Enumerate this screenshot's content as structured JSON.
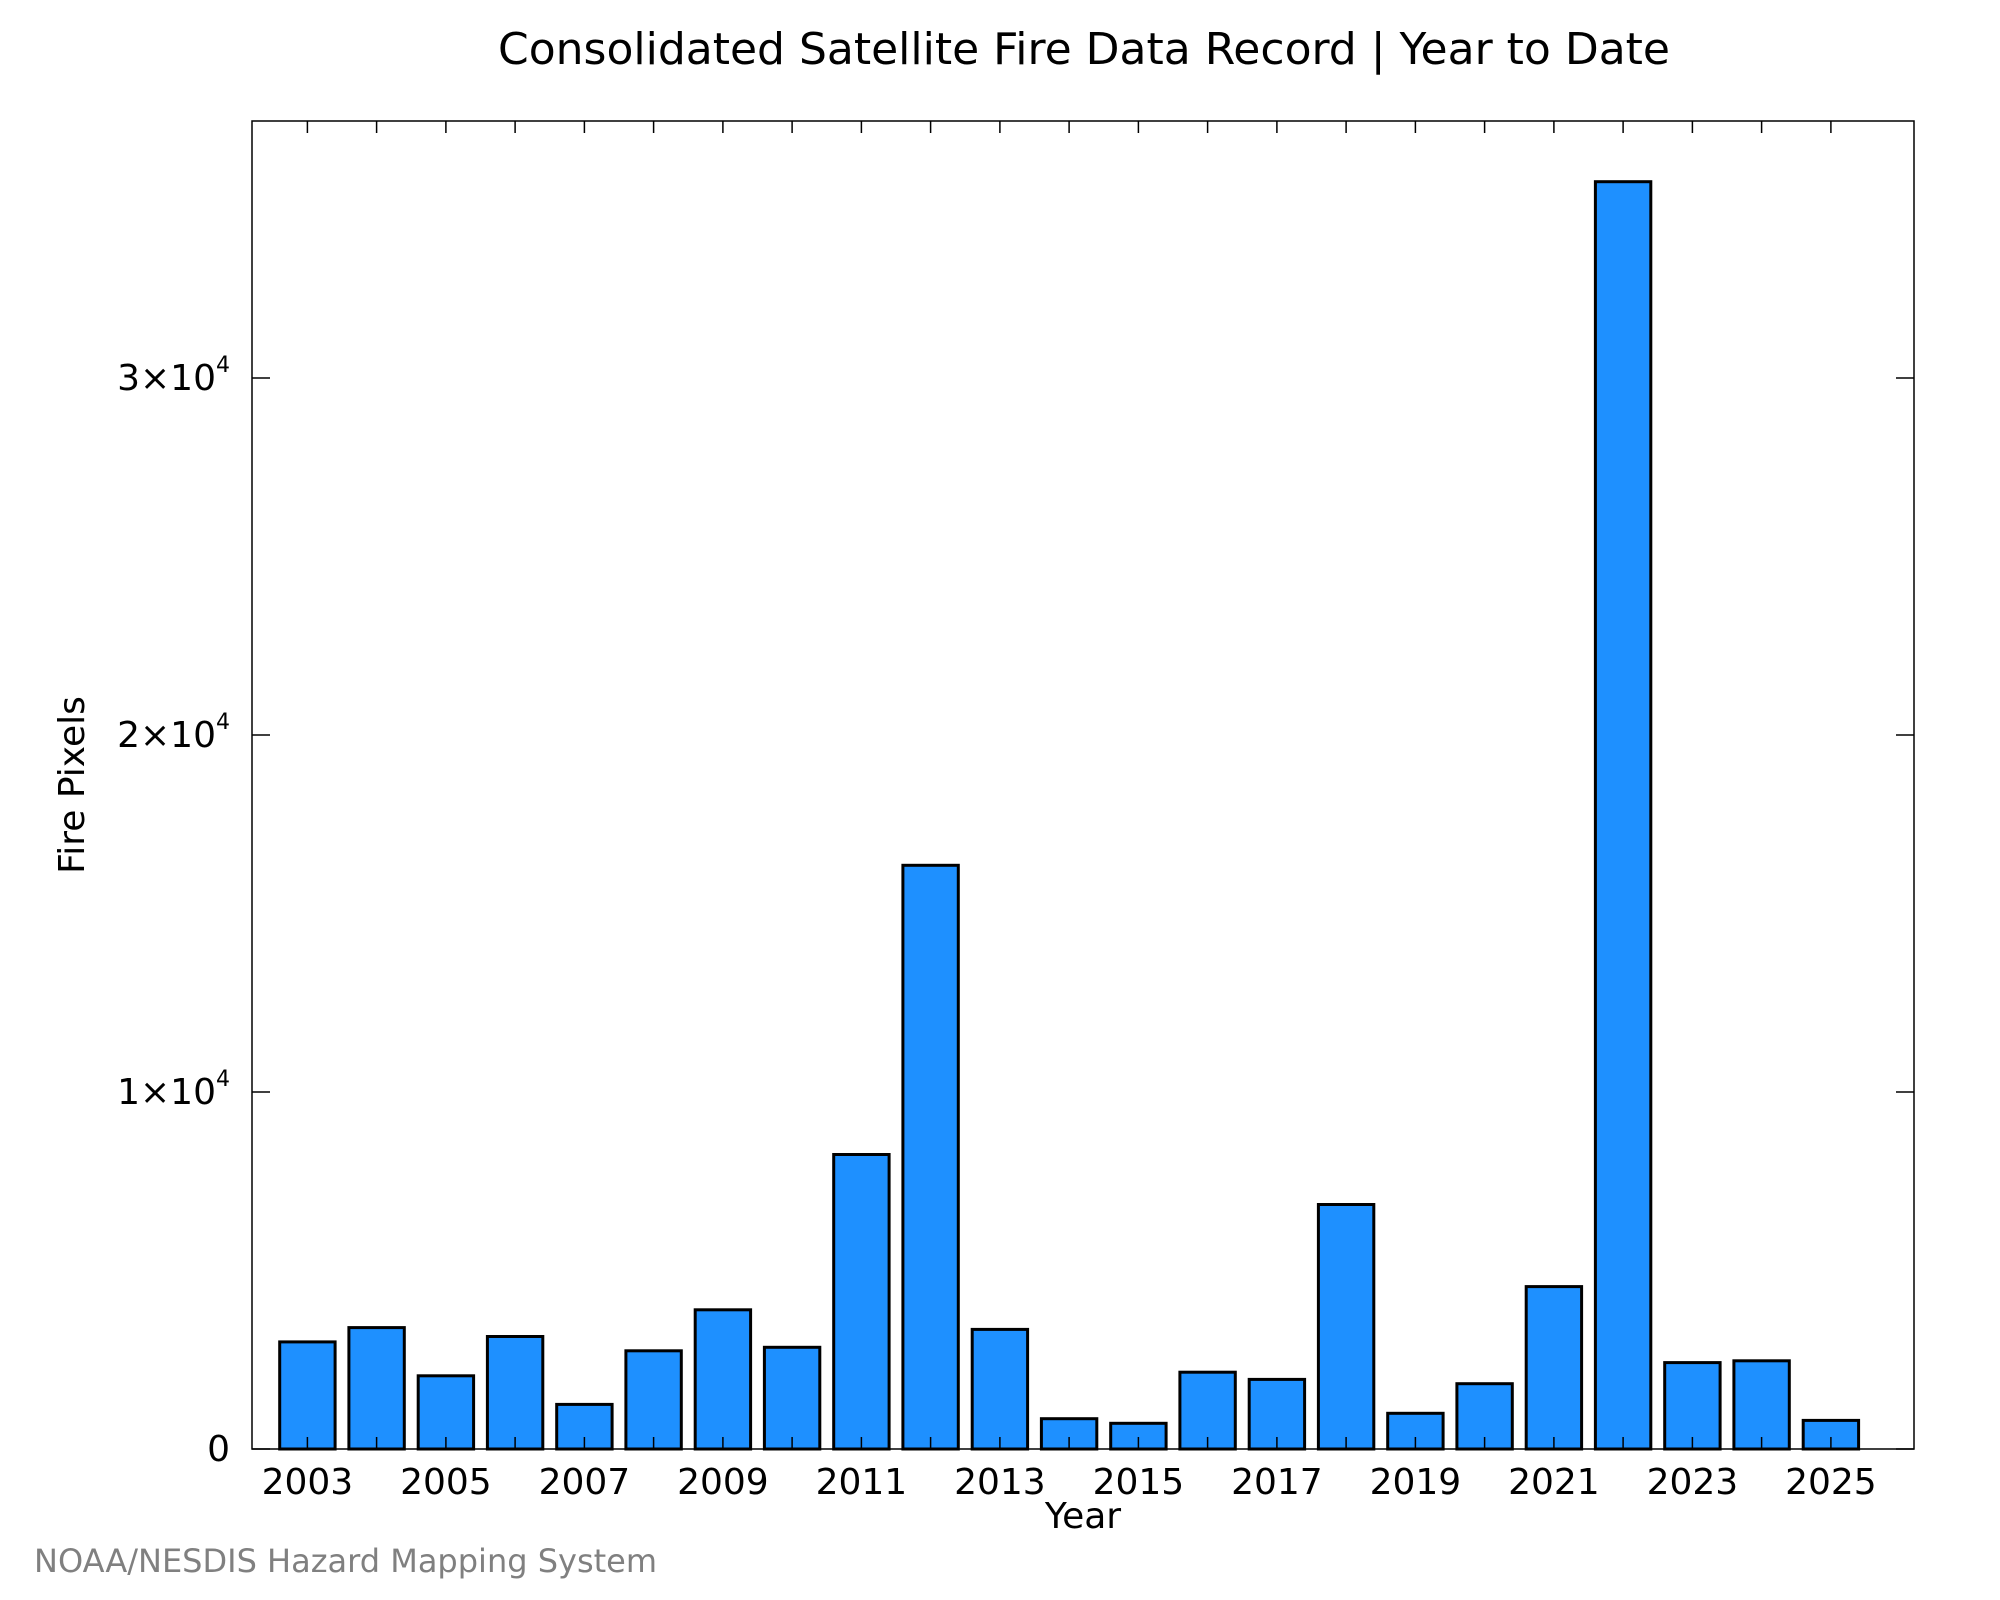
{
  "chart_data": {
    "type": "bar",
    "title": "Consolidated Satellite Fire Data Record | Year to Date",
    "xlabel": "Year",
    "ylabel": "Fire Pixels",
    "categories": [
      "2003",
      "2004",
      "2005",
      "2006",
      "2007",
      "2008",
      "2009",
      "2010",
      "2011",
      "2012",
      "2013",
      "2014",
      "2015",
      "2016",
      "2017",
      "2018",
      "2019",
      "2020",
      "2021",
      "2022",
      "2023",
      "2024",
      "2025"
    ],
    "values": [
      3000,
      3400,
      2050,
      3150,
      1250,
      2750,
      3900,
      2850,
      8250,
      16350,
      3350,
      850,
      720,
      2150,
      1950,
      6850,
      1000,
      1830,
      4550,
      35500,
      2420,
      2470,
      800
    ],
    "x_tick_labels": [
      "2003",
      "2005",
      "2007",
      "2009",
      "2011",
      "2013",
      "2015",
      "2017",
      "2019",
      "2021",
      "2023",
      "2025"
    ],
    "y_ticks": [
      {
        "value": 0,
        "mantissa": "0",
        "exponent": ""
      },
      {
        "value": 10000,
        "mantissa": "1×10",
        "exponent": "4"
      },
      {
        "value": 20000,
        "mantissa": "2×10",
        "exponent": "4"
      },
      {
        "value": 30000,
        "mantissa": "3×10",
        "exponent": "4"
      }
    ],
    "ylim": [
      0,
      37200
    ],
    "xlim": [
      2002.2,
      2026.2
    ],
    "bar_color": "#1e90ff",
    "bar_edge_color": "#000000",
    "grid": false,
    "legend": "none"
  },
  "credit": "NOAA/NESDIS Hazard Mapping System"
}
